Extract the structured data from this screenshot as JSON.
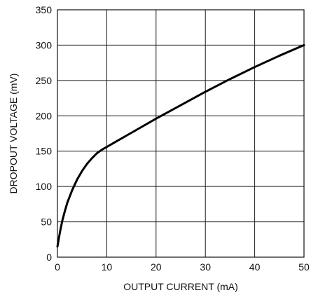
{
  "chart_data": {
    "type": "line",
    "title": "",
    "xlabel": "OUTPUT CURRENT (mA)",
    "ylabel": "DROPOUT VOLTAGE (mV)",
    "xlim": [
      0,
      50
    ],
    "ylim": [
      0,
      350
    ],
    "xticks": [
      0,
      10,
      20,
      30,
      40,
      50
    ],
    "yticks": [
      0,
      50,
      100,
      150,
      200,
      250,
      300,
      350
    ],
    "grid": true,
    "series": [
      {
        "x": [
          0,
          0.5,
          1,
          1.5,
          2,
          3,
          4,
          5,
          6,
          7,
          8,
          9,
          10,
          12,
          15,
          20,
          25,
          30,
          35,
          40,
          45,
          50
        ],
        "values": [
          15,
          35,
          52,
          65,
          77,
          95,
          110,
          122,
          132,
          140,
          147,
          152,
          156,
          164,
          176,
          196,
          215,
          234,
          252,
          269,
          285,
          300
        ]
      }
    ]
  }
}
